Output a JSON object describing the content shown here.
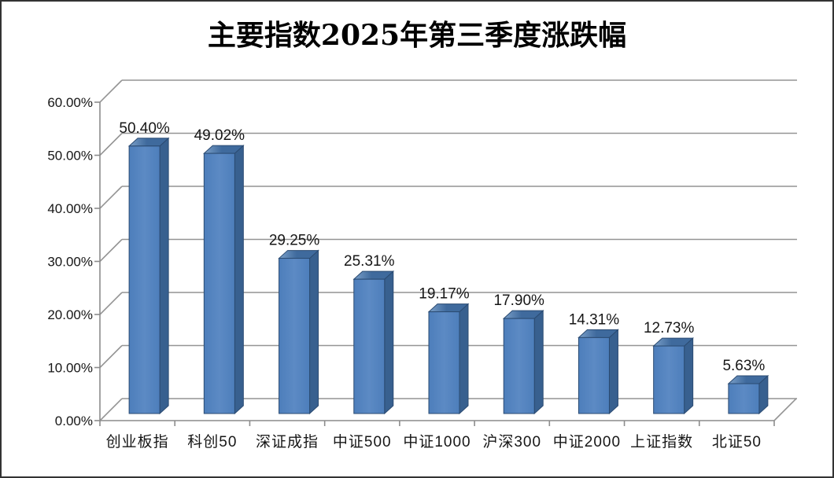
{
  "page": {
    "background": "#ffffff",
    "border_color": "#333333"
  },
  "title": "主要指数2025年第三季度涨跌幅",
  "chart_data": {
    "type": "bar",
    "variant": "3d-column",
    "title": "主要指数2025年第三季度涨跌幅",
    "categories": [
      "创业板指",
      "科创50",
      "深证成指",
      "中证500",
      "中证1000",
      "沪深300",
      "中证2000",
      "上证指数",
      "北证50"
    ],
    "values": [
      50.4,
      49.02,
      29.25,
      25.31,
      19.17,
      17.9,
      14.31,
      12.73,
      5.63
    ],
    "data_labels": [
      "50.40%",
      "49.02%",
      "29.25%",
      "25.31%",
      "19.17%",
      "17.90%",
      "14.31%",
      "12.73%",
      "5.63%"
    ],
    "y_tick_labels": [
      "0.00%",
      "10.00%",
      "20.00%",
      "30.00%",
      "40.00%",
      "50.00%",
      "60.00%"
    ],
    "ylim": [
      0,
      60
    ],
    "y_step": 10,
    "xlabel": "",
    "ylabel": "",
    "grid": true,
    "legend": "none",
    "colors": {
      "bar_front": "#4D7EBB",
      "bar_front_light": "#5C8AC4",
      "bar_side": "#38608F",
      "bar_top_light": "#7BA0C9",
      "bar_top_dark": "#3F6A9D",
      "bar_outline": "#2B4B72",
      "gridline": "#949494",
      "axis": "#8C8C8C",
      "label": "#161616",
      "title": "#000000"
    }
  }
}
